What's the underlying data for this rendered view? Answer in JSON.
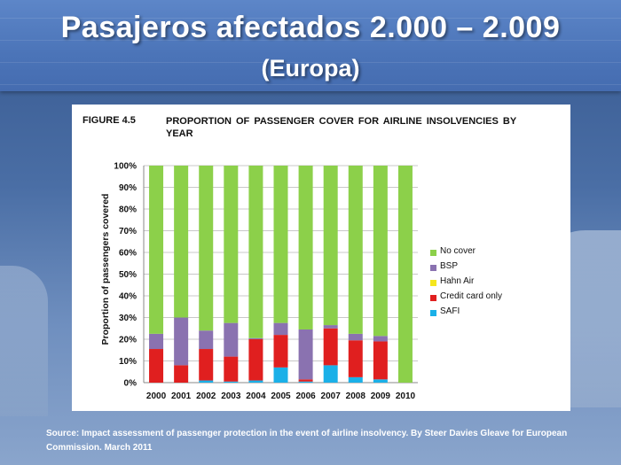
{
  "slide": {
    "title": "Pasajeros afectados 2.000 – 2.009",
    "subtitle": "(Europa)",
    "source": "Source: Impact assessment of passenger protection in the event of airline insolvency. By Steer Davies Gleave for European Commission. March 2011"
  },
  "figure": {
    "label": "FIGURE 4.5",
    "title": "PROPORTION OF PASSENGER COVER FOR AIRLINE INSOLVENCIES BY YEAR"
  },
  "chart_data": {
    "type": "bar",
    "stacked": true,
    "title": "PROPORTION OF PASSENGER COVER FOR AIRLINE INSOLVENCIES BY YEAR",
    "xlabel": "",
    "ylabel": "Proportion of passengers covered",
    "ylim": [
      0,
      100
    ],
    "yticks": [
      0,
      10,
      20,
      30,
      40,
      50,
      60,
      70,
      80,
      90,
      100
    ],
    "ytick_labels": [
      "0%",
      "10%",
      "20%",
      "30%",
      "40%",
      "50%",
      "60%",
      "70%",
      "80%",
      "90%",
      "100%"
    ],
    "grid": true,
    "legend_position": "right",
    "categories": [
      "2000",
      "2001",
      "2002",
      "2003",
      "2004",
      "2005",
      "2006",
      "2007",
      "2008",
      "2009",
      "2010"
    ],
    "series": [
      {
        "name": "SAFI",
        "color": "#1ab0e8",
        "values": [
          0,
          0,
          1,
          0.5,
          1,
          7,
          0.5,
          8,
          2.5,
          1.5,
          0
        ]
      },
      {
        "name": "Credit card only",
        "color": "#e01f1f",
        "values": [
          15.5,
          8,
          14.5,
          11.5,
          19,
          15,
          1,
          17,
          17,
          17.5,
          0
        ]
      },
      {
        "name": "Hahn Air",
        "color": "#f5e61e",
        "values": [
          0,
          0,
          0,
          0,
          0,
          0,
          0,
          0,
          0,
          0,
          0
        ]
      },
      {
        "name": "BSP",
        "color": "#8a72b0",
        "values": [
          7,
          22,
          8.5,
          15.5,
          0.5,
          5.5,
          23,
          1.5,
          3,
          2.5,
          0
        ]
      },
      {
        "name": "No cover",
        "color": "#8cd04a",
        "values": [
          77.5,
          70,
          76,
          72.5,
          79.5,
          72.5,
          75.5,
          73.5,
          77.5,
          78.5,
          100
        ]
      }
    ],
    "legend_order": [
      "No cover",
      "BSP",
      "Hahn Air",
      "Credit card only",
      "SAFI"
    ]
  }
}
